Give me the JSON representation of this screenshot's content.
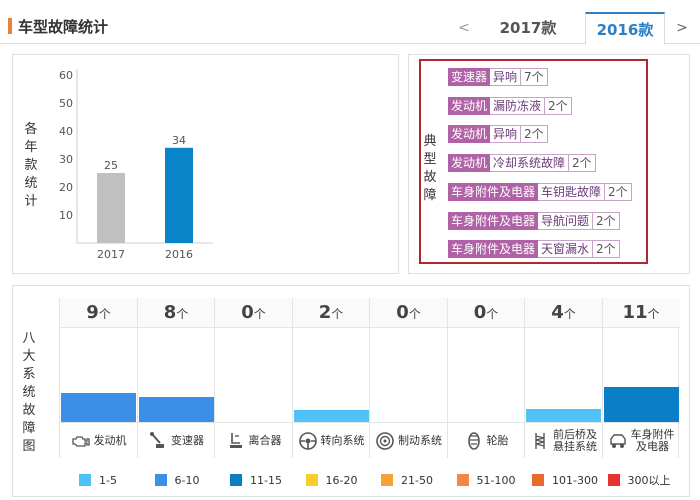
{
  "header": {
    "title": "车型故障统计",
    "prev_arrow": "<",
    "next_arrow": ">",
    "tabs": [
      {
        "label": "2017款",
        "active": false
      },
      {
        "label": "2016款",
        "active": true
      }
    ]
  },
  "yearly_chart": {
    "vertical_label": [
      "各",
      "年",
      "款",
      "统",
      "计"
    ]
  },
  "chart_data": {
    "type": "bar",
    "categories": [
      "2017",
      "2016"
    ],
    "values": [
      25,
      34
    ],
    "colors": [
      "#c0c0c0",
      "#0a84c8"
    ],
    "ylim": [
      0,
      60
    ],
    "yticks": [
      10,
      20,
      30,
      40,
      50,
      60
    ],
    "ytick_labels": [
      "10",
      "20",
      "30",
      "40",
      "50",
      "60"
    ],
    "data_labels": [
      "25",
      "34"
    ]
  },
  "typical_faults": {
    "vertical_label": [
      "典",
      "型",
      "故",
      "障"
    ],
    "items": [
      {
        "category": "变速器",
        "fault": "异响",
        "count": "7个"
      },
      {
        "category": "发动机",
        "fault": "漏防冻液",
        "count": "2个"
      },
      {
        "category": "发动机",
        "fault": "异响",
        "count": "2个"
      },
      {
        "category": "发动机",
        "fault": "冷却系统故障",
        "count": "2个"
      },
      {
        "category": "车身附件及电器",
        "fault": "车钥匙故障",
        "count": "2个"
      },
      {
        "category": "车身附件及电器",
        "fault": "导航问题",
        "count": "2个"
      },
      {
        "category": "车身附件及电器",
        "fault": "天窗漏水",
        "count": "2个"
      }
    ]
  },
  "systems": {
    "vertical_label": [
      "八",
      "大",
      "系",
      "统",
      "故",
      "障",
      "图"
    ],
    "unit": "个",
    "items": [
      {
        "name_line1": "发动机",
        "name_line2": "",
        "count": "9",
        "icon": "engine-icon",
        "color": "#3b8fe6"
      },
      {
        "name_line1": "变速器",
        "name_line2": "",
        "count": "8",
        "icon": "gear-shift-icon",
        "color": "#3b8fe6"
      },
      {
        "name_line1": "离合器",
        "name_line2": "",
        "count": "0",
        "icon": "clutch-icon",
        "color": "#3b8fe6"
      },
      {
        "name_line1": "转向系统",
        "name_line2": "",
        "count": "2",
        "icon": "steering-wheel-icon",
        "color": "#4fc3f7"
      },
      {
        "name_line1": "制动系统",
        "name_line2": "",
        "count": "0",
        "icon": "brake-icon",
        "color": "#4fc3f7"
      },
      {
        "name_line1": "轮胎",
        "name_line2": "",
        "count": "0",
        "icon": "tire-icon",
        "color": "#4fc3f7"
      },
      {
        "name_line1": "前后桥及",
        "name_line2": "悬挂系统",
        "count": "4",
        "icon": "suspension-icon",
        "color": "#4fc3f7"
      },
      {
        "name_line1": "车身附件",
        "name_line2": "及电器",
        "count": "11",
        "icon": "car-body-icon",
        "color": "#0a7fc8"
      }
    ]
  },
  "legend": [
    {
      "label": "1-5",
      "color": "#4fc3f7"
    },
    {
      "label": "6-10",
      "color": "#3b8fe6"
    },
    {
      "label": "11-15",
      "color": "#0a7fc8"
    },
    {
      "label": "16-20",
      "color": "#f6cf2a"
    },
    {
      "label": "21-50",
      "color": "#f5a23a"
    },
    {
      "label": "51-100",
      "color": "#f08a3a"
    },
    {
      "label": "101-300",
      "color": "#ea6a2a"
    },
    {
      "label": "300以上",
      "color": "#e63232"
    }
  ]
}
